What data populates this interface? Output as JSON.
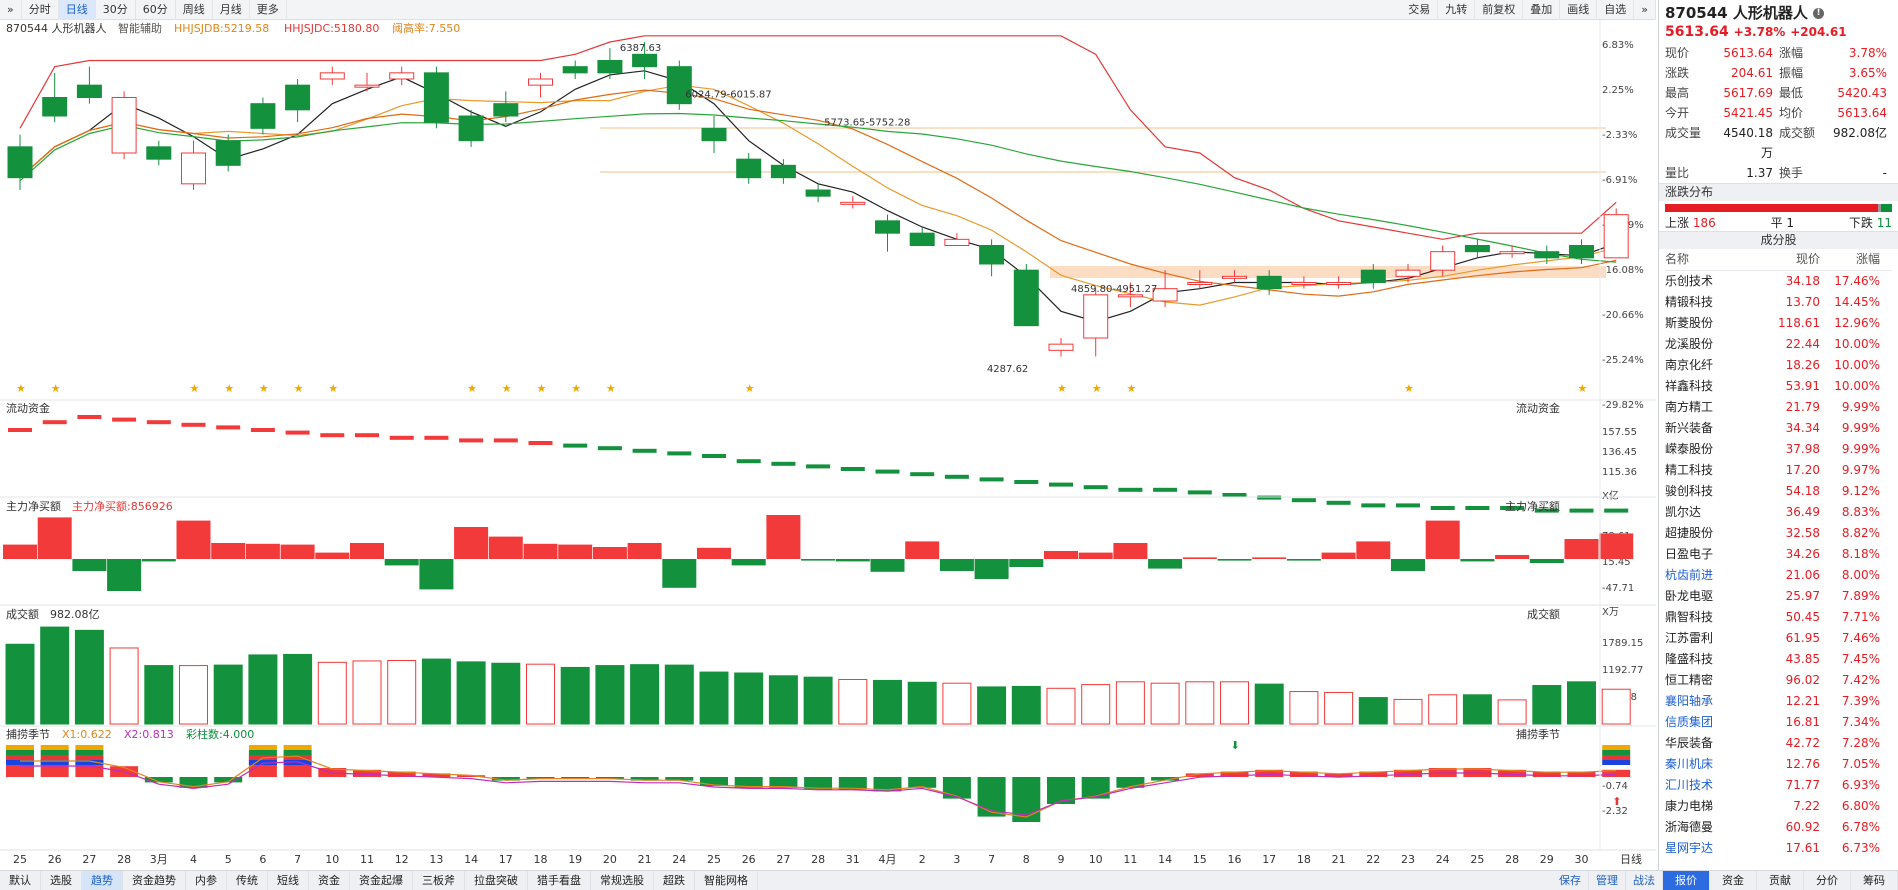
{
  "toolbar": {
    "left": [
      "分时",
      "日线",
      "30分",
      "60分",
      "周线",
      "月线",
      "更多"
    ],
    "right": [
      "交易",
      "九转",
      "前复权",
      "叠加",
      "画线",
      "自选"
    ]
  },
  "stock": {
    "code": "870544",
    "name": "人形机器人",
    "indicator_label": "智能辅助",
    "hhjsjdb": "HHJSJDB:5219.58",
    "hhjsjdc": "HHJSJDC:5180.80",
    "yd": "阈高率:7.550"
  },
  "price_axis": [
    "6.83%",
    "2.25%",
    "-2.33%",
    "-6.91%",
    "-11.49%",
    "-16.08%",
    "-20.66%",
    "-25.24%",
    "-29.82%"
  ],
  "annotations": {
    "high": "6387.63",
    "a1": "6024.79-6015.87",
    "a2": "5773.65-5752.28",
    "a3": "4859.80-4951.27",
    "low": "4287.62"
  },
  "candles": [
    [
      0.95,
      0.9,
      0.97,
      0.88
    ],
    [
      1.03,
      1.0,
      1.07,
      0.99
    ],
    [
      1.05,
      1.03,
      1.08,
      1.02
    ],
    [
      0.94,
      1.03,
      1.04,
      0.93
    ],
    [
      0.95,
      0.93,
      0.96,
      0.92
    ],
    [
      0.89,
      0.94,
      0.96,
      0.88
    ],
    [
      0.96,
      0.92,
      0.97,
      0.91
    ],
    [
      1.02,
      0.98,
      1.03,
      0.97
    ],
    [
      1.05,
      1.01,
      1.06,
      0.99
    ],
    [
      1.06,
      1.07,
      1.08,
      1.05
    ],
    [
      1.05,
      1.05,
      1.07,
      1.04
    ],
    [
      1.06,
      1.07,
      1.08,
      1.05
    ],
    [
      1.07,
      0.99,
      1.08,
      0.98
    ],
    [
      1.0,
      0.96,
      1.01,
      0.95
    ],
    [
      1.02,
      1.0,
      1.04,
      0.99
    ],
    [
      1.05,
      1.06,
      1.07,
      1.03
    ],
    [
      1.08,
      1.07,
      1.09,
      1.06
    ],
    [
      1.09,
      1.07,
      1.11,
      1.06
    ],
    [
      1.1,
      1.08,
      1.12,
      1.06
    ],
    [
      1.08,
      1.02,
      1.09,
      1.01
    ],
    [
      0.98,
      0.96,
      1.0,
      0.94
    ],
    [
      0.93,
      0.9,
      0.94,
      0.89
    ],
    [
      0.92,
      0.9,
      0.93,
      0.89
    ],
    [
      0.88,
      0.87,
      0.89,
      0.86
    ],
    [
      0.86,
      0.86,
      0.87,
      0.85
    ],
    [
      0.83,
      0.81,
      0.84,
      0.78
    ],
    [
      0.81,
      0.79,
      0.82,
      0.79
    ],
    [
      0.79,
      0.8,
      0.81,
      0.79
    ],
    [
      0.79,
      0.76,
      0.8,
      0.74
    ],
    [
      0.75,
      0.66,
      0.76,
      0.66
    ],
    [
      0.62,
      0.63,
      0.64,
      0.61
    ],
    [
      0.64,
      0.71,
      0.72,
      0.61
    ],
    [
      0.71,
      0.71,
      0.73,
      0.69
    ],
    [
      0.7,
      0.72,
      0.75,
      0.69
    ],
    [
      0.73,
      0.73,
      0.75,
      0.72
    ],
    [
      0.74,
      0.74,
      0.75,
      0.73
    ],
    [
      0.74,
      0.72,
      0.75,
      0.71
    ],
    [
      0.73,
      0.73,
      0.74,
      0.72
    ],
    [
      0.73,
      0.73,
      0.74,
      0.72
    ],
    [
      0.75,
      0.73,
      0.76,
      0.72
    ],
    [
      0.74,
      0.75,
      0.76,
      0.73
    ],
    [
      0.75,
      0.78,
      0.79,
      0.74
    ],
    [
      0.79,
      0.78,
      0.8,
      0.77
    ],
    [
      0.78,
      0.78,
      0.79,
      0.77
    ],
    [
      0.78,
      0.77,
      0.79,
      0.76
    ],
    [
      0.79,
      0.77,
      0.8,
      0.76
    ],
    [
      0.77,
      0.84,
      0.85,
      0.77
    ]
  ],
  "stars": [
    0,
    1,
    5,
    6,
    7,
    8,
    9,
    13,
    14,
    15,
    16,
    17,
    21,
    30,
    31,
    32,
    40,
    45
  ],
  "panels": {
    "flow": {
      "title": "流动资金",
      "right": "流动资金",
      "axis": [
        "157.55",
        "136.45",
        "115.36",
        "X亿"
      ]
    },
    "main_net": {
      "title": "主力净买额",
      "sub": "主力净买额:856926",
      "right": "主力净买额",
      "axis": [
        "78.61",
        "15.45",
        "-47.71",
        "X万"
      ]
    },
    "volume": {
      "title": "成交额",
      "sub": "982.08亿",
      "right": "成交额",
      "axis": [
        "1789.15",
        "1192.77",
        "596.38",
        "X亿"
      ]
    },
    "season": {
      "title": "捕捞季节",
      "x1": "X1:0.622",
      "x2": "X2:0.813",
      "bars": "彩柱数:4.000",
      "right": "捕捞季节",
      "axis": [
        "0.84",
        "-0.74",
        "-2.32"
      ]
    }
  },
  "flow_values": [
    5,
    8,
    10,
    9,
    8,
    7,
    6,
    5,
    4,
    3,
    3,
    2,
    2,
    1,
    1,
    0,
    -1,
    -2,
    -3,
    -4,
    -5,
    -7,
    -8,
    -9,
    -10,
    -11,
    -12,
    -13,
    -14,
    -15,
    -16,
    -17,
    -18,
    -18,
    -19,
    -20,
    -21,
    -22,
    -23,
    -24,
    -24,
    -25,
    -25,
    -25,
    -26,
    -26,
    -26
  ],
  "net_values": [
    18,
    52,
    -15,
    -40,
    -3,
    48,
    20,
    19,
    18,
    8,
    20,
    -8,
    -38,
    40,
    28,
    19,
    18,
    15,
    20,
    -36,
    14,
    -8,
    55,
    -2,
    -3,
    -16,
    22,
    -15,
    -25,
    -10,
    10,
    8,
    20,
    -12,
    2,
    -2,
    2,
    -2,
    8,
    22,
    -15,
    48,
    -3,
    5,
    -5,
    25,
    32
  ],
  "vol_values": [
    1720,
    2090,
    2020,
    1640,
    1260,
    1260,
    1270,
    1490,
    1500,
    1330,
    1360,
    1370,
    1400,
    1340,
    1310,
    1290,
    1220,
    1260,
    1280,
    1270,
    1120,
    1100,
    1040,
    1010,
    960,
    940,
    900,
    880,
    800,
    810,
    770,
    850,
    910,
    880,
    910,
    910,
    860,
    700,
    680,
    570,
    530,
    630,
    630,
    520,
    830,
    910,
    750,
    840,
    640,
    690,
    790
  ],
  "season_values": [
    1,
    1,
    1,
    0.6,
    -0.3,
    -0.6,
    -0.3,
    1.2,
    1.3,
    0.5,
    0.4,
    0.3,
    0.2,
    0.1,
    -0.2,
    -0.1,
    -0.1,
    -0.1,
    -0.2,
    -0.2,
    -0.5,
    -0.6,
    -0.6,
    -0.7,
    -0.7,
    -0.8,
    -0.6,
    -1.2,
    -2.2,
    -2.5,
    -1.5,
    -1.2,
    -0.6,
    -0.2,
    0.2,
    0.3,
    0.4,
    0.3,
    0.2,
    0.3,
    0.4,
    0.5,
    0.5,
    0.4,
    0.3,
    0.3,
    0.4,
    0.5,
    0.7,
    1.0
  ],
  "xaxis": [
    "25",
    "26",
    "27",
    "28",
    "3月",
    "4",
    "5",
    "6",
    "7",
    "10",
    "11",
    "12",
    "13",
    "14",
    "17",
    "18",
    "19",
    "20",
    "21",
    "24",
    "25",
    "26",
    "27",
    "28",
    "31",
    "4月",
    "2",
    "3",
    "7",
    "8",
    "9",
    "10",
    "11",
    "14",
    "15",
    "16",
    "17",
    "18",
    "21",
    "22",
    "23",
    "24",
    "25",
    "28",
    "29",
    "30",
    "日线"
  ],
  "right_panel": {
    "code": "870544",
    "name": "人形机器人",
    "price": "5613.64",
    "chg_pct": "+3.78%",
    "chg": "+204.61",
    "rows": [
      [
        "现价",
        "5613.64",
        "涨幅",
        "3.78%"
      ],
      [
        "涨跌",
        "204.61",
        "振幅",
        "3.65%"
      ],
      [
        "最高",
        "5617.69",
        "最低",
        "5420.43"
      ],
      [
        "今开",
        "5421.45",
        "均价",
        "5613.64"
      ]
    ],
    "turnover_k": "成交量",
    "turnover_v": "4540.18万",
    "amt_k": "成交额",
    "amt_v": "982.08亿",
    "ratio_k": "量比",
    "ratio_v": "1.37",
    "hs_k": "换手",
    "hs_v": "-",
    "dist_title": "涨跌分布",
    "up_k": "上涨",
    "up_v": "186",
    "flat_k": "平",
    "flat_v": "1",
    "down_k": "下跌",
    "down_v": "11",
    "cons_title": "成分股",
    "headers": [
      "名称",
      "现价",
      "涨幅"
    ],
    "stocks": [
      [
        "乐创技术",
        "34.18",
        "17.46%"
      ],
      [
        "精锻科技",
        "13.70",
        "14.45%"
      ],
      [
        "斯菱股份",
        "118.61",
        "12.96%"
      ],
      [
        "龙溪股份",
        "22.44",
        "10.00%"
      ],
      [
        "南京化纤",
        "18.26",
        "10.00%"
      ],
      [
        "祥鑫科技",
        "53.91",
        "10.00%"
      ],
      [
        "南方精工",
        "21.79",
        "9.99%"
      ],
      [
        "新兴装备",
        "34.34",
        "9.99%"
      ],
      [
        "嵘泰股份",
        "37.98",
        "9.99%"
      ],
      [
        "精工科技",
        "17.20",
        "9.97%"
      ],
      [
        "骏创科技",
        "54.18",
        "9.12%"
      ],
      [
        "凯尔达",
        "36.49",
        "8.83%"
      ],
      [
        "超捷股份",
        "32.58",
        "8.82%"
      ],
      [
        "日盈电子",
        "34.26",
        "8.18%"
      ],
      [
        "杭齿前进",
        "21.06",
        "8.00%"
      ],
      [
        "卧龙电驱",
        "25.97",
        "7.89%"
      ],
      [
        "鼎智科技",
        "50.45",
        "7.71%"
      ],
      [
        "江苏雷利",
        "61.95",
        "7.46%"
      ],
      [
        "隆盛科技",
        "43.85",
        "7.45%"
      ],
      [
        "恒工精密",
        "96.02",
        "7.42%"
      ],
      [
        "襄阳轴承",
        "12.21",
        "7.39%"
      ],
      [
        "信质集团",
        "16.81",
        "7.34%"
      ],
      [
        "华辰装备",
        "42.72",
        "7.28%"
      ],
      [
        "秦川机床",
        "12.76",
        "7.05%"
      ],
      [
        "汇川技术",
        "71.77",
        "6.93%"
      ],
      [
        "康力电梯",
        "7.22",
        "6.80%"
      ],
      [
        "浙海德曼",
        "60.92",
        "6.78%"
      ],
      [
        "星网宇达",
        "17.61",
        "6.73%"
      ]
    ],
    "blue_names": [
      "杭齿前进",
      "襄阳轴承",
      "信质集团",
      "秦川机床",
      "汇川技术",
      "星网宇达"
    ]
  },
  "bottom": {
    "left": [
      "默认",
      "选股",
      "趋势",
      "资金趋势",
      "内参",
      "传统",
      "短线",
      "资金",
      "资金起爆",
      "三板斧",
      "拉盘突破",
      "猎手看盘",
      "常规选股",
      "超跌",
      "智能网格"
    ],
    "right": [
      "保存",
      "管理",
      "战法"
    ],
    "panel_tabs": [
      "报价",
      "资金",
      "贡献",
      "分价",
      "筹码"
    ]
  },
  "colors": {
    "up": "#f23a3a",
    "down": "#14913c",
    "ma5": "#222222",
    "ma10": "#e89a2b",
    "ma20": "#e06b16",
    "ma60": "#e23838",
    "ma120": "#2aa53a"
  }
}
